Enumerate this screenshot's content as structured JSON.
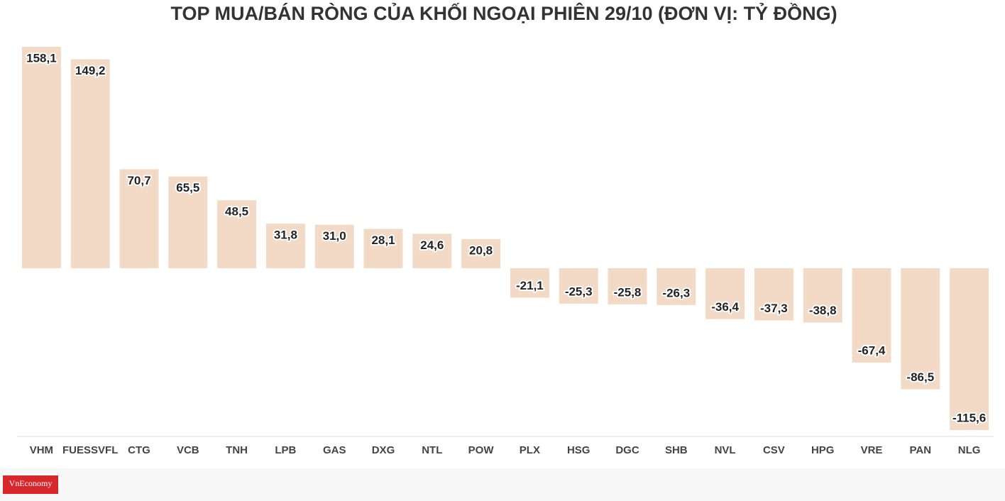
{
  "chart_data": {
    "type": "bar",
    "title": "TOP MUA/BÁN RÒNG CỦA KHỐI NGOẠI PHIÊN 29/10 (ĐƠN VỊ: TỶ ĐỒNG)",
    "categories": [
      "VHM",
      "FUESSVFL",
      "CTG",
      "VCB",
      "TNH",
      "LPB",
      "GAS",
      "DXG",
      "NTL",
      "POW",
      "PLX",
      "HSG",
      "DGC",
      "SHB",
      "NVL",
      "CSV",
      "HPG",
      "VRE",
      "PAN",
      "NLG"
    ],
    "values": [
      158.1,
      149.2,
      70.7,
      65.5,
      48.5,
      31.8,
      31.0,
      28.1,
      24.6,
      20.8,
      -21.1,
      -25.3,
      -25.8,
      -26.3,
      -36.4,
      -37.3,
      -38.8,
      -67.4,
      -86.5,
      -115.6
    ],
    "value_labels": [
      "158,1",
      "149,2",
      "70,7",
      "65,5",
      "48,5",
      "31,8",
      "31,0",
      "28,1",
      "24,6",
      "20,8",
      "-21,1",
      "-25,3",
      "-25,8",
      "-26,3",
      "-36,4",
      "-37,3",
      "-38,8",
      "-67,4",
      "-86,5",
      "-115,6"
    ],
    "color": "#f3dac6",
    "logo": "VnEconomy"
  }
}
